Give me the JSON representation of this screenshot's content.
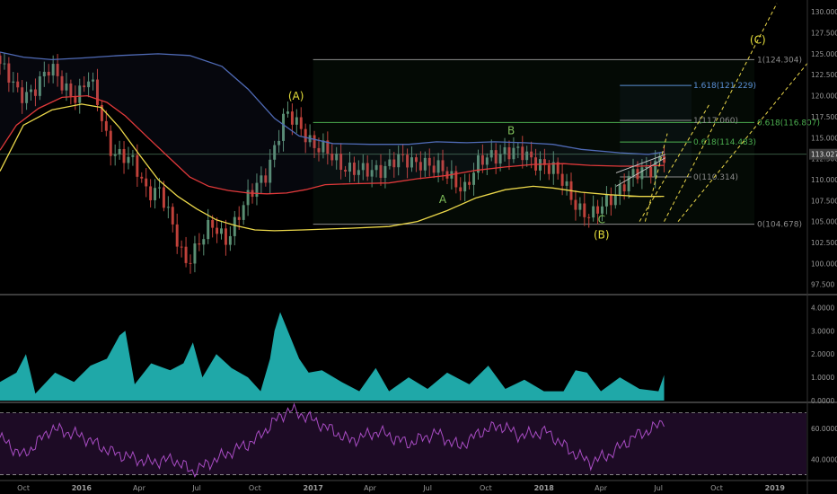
{
  "colors": {
    "background": "#000000",
    "up_candle": "#5a8f73",
    "down_candle": "#c0413a",
    "ma_fast": "#e0393a",
    "ma_slow": "#ecd84a",
    "band": "#4f6ab5",
    "volume": "#1fa8a8",
    "rsi_line": "#a84cc3",
    "rsi_fill": "#1d0b25",
    "fib": "#4caf50",
    "fib_blue": "#5a8fd6",
    "fib_grey": "#8c8c8c",
    "label_yellow": "#e3dc3a",
    "label_green": "#7fbf5a",
    "axis_text": "#9a9a9a",
    "last_price_bg": "#3b3b3b"
  },
  "chart_data": [
    {
      "type": "candlestick",
      "panel": "price",
      "y_axis": {
        "ylim": [
          96.5,
          131.2
        ],
        "ticks": [
          "97.500",
          "100.000",
          "102.500",
          "105.000",
          "107.500",
          "110.000",
          "112.500",
          "115.000",
          "117.500",
          "120.000",
          "122.500",
          "125.000",
          "127.500",
          "130.000"
        ],
        "last_price": "113.027",
        "last_price_value": 113.027
      },
      "x_axis": {
        "range": [
          "2015-08-25",
          "2019-02-20"
        ],
        "ticks": [
          {
            "label": "Oct",
            "date": "2015-10-01"
          },
          {
            "label": "2016",
            "date": "2016-01-01"
          },
          {
            "label": "Apr",
            "date": "2016-04-01"
          },
          {
            "label": "Jul",
            "date": "2016-07-01"
          },
          {
            "label": "Oct",
            "date": "2016-10-01"
          },
          {
            "label": "2017",
            "date": "2017-01-01"
          },
          {
            "label": "Apr",
            "date": "2017-04-01"
          },
          {
            "label": "Jul",
            "date": "2017-07-01"
          },
          {
            "label": "Oct",
            "date": "2017-10-01"
          },
          {
            "label": "2018",
            "date": "2018-01-01"
          },
          {
            "label": "Apr",
            "date": "2018-04-01"
          },
          {
            "label": "Jul",
            "date": "2018-07-01"
          },
          {
            "label": "Oct",
            "date": "2018-10-01"
          },
          {
            "label": "2019",
            "date": "2019-01-01"
          }
        ]
      },
      "price_path": [
        [
          "2015-08-25",
          124.8
        ],
        [
          "2015-09-10",
          122.5
        ],
        [
          "2015-10-01",
          120.0
        ],
        [
          "2015-10-25",
          121.0
        ],
        [
          "2015-11-20",
          123.0
        ],
        [
          "2015-12-10",
          121.5
        ],
        [
          "2016-01-01",
          119.8
        ],
        [
          "2016-01-20",
          121.8
        ],
        [
          "2016-02-05",
          118.8
        ],
        [
          "2016-02-20",
          114.2
        ],
        [
          "2016-03-10",
          112.5
        ],
        [
          "2016-04-01",
          111.8
        ],
        [
          "2016-04-20",
          109.0
        ],
        [
          "2016-05-10",
          108.5
        ],
        [
          "2016-06-01",
          104.0
        ],
        [
          "2016-06-20",
          100.5
        ],
        [
          "2016-07-10",
          102.0
        ],
        [
          "2016-08-01",
          104.5
        ],
        [
          "2016-08-25",
          103.2
        ],
        [
          "2016-09-20",
          106.5
        ],
        [
          "2016-10-10",
          109.5
        ],
        [
          "2016-10-25",
          111.0
        ],
        [
          "2016-11-10",
          114.0
        ],
        [
          "2016-11-25",
          117.5
        ],
        [
          "2016-12-10",
          117.2
        ],
        [
          "2016-12-25",
          116.0
        ],
        [
          "2017-01-10",
          113.8
        ],
        [
          "2017-02-01",
          113.0
        ],
        [
          "2017-02-20",
          112.2
        ],
        [
          "2017-03-10",
          111.2
        ],
        [
          "2017-03-30",
          110.6
        ],
        [
          "2017-04-20",
          111.4
        ],
        [
          "2017-05-15",
          112.2
        ],
        [
          "2017-06-10",
          112.0
        ],
        [
          "2017-06-30",
          112.5
        ],
        [
          "2017-07-20",
          111.2
        ],
        [
          "2017-08-15",
          110.2
        ],
        [
          "2017-09-05",
          109.2
        ],
        [
          "2017-09-25",
          111.5
        ],
        [
          "2017-10-15",
          112.8
        ],
        [
          "2017-11-05",
          113.6
        ],
        [
          "2017-11-25",
          113.0
        ],
        [
          "2017-12-15",
          112.6
        ],
        [
          "2018-01-05",
          112.2
        ],
        [
          "2018-01-25",
          110.8
        ],
        [
          "2018-02-15",
          108.6
        ],
        [
          "2018-03-05",
          106.8
        ],
        [
          "2018-03-25",
          105.4
        ],
        [
          "2018-04-10",
          106.6
        ],
        [
          "2018-04-30",
          108.6
        ],
        [
          "2018-05-20",
          110.0
        ],
        [
          "2018-06-10",
          110.6
        ],
        [
          "2018-06-25",
          111.4
        ],
        [
          "2018-07-05",
          112.3
        ],
        [
          "2018-07-10",
          113.0
        ]
      ],
      "candle_interval_days": 7,
      "indicators": {
        "ma_fast_path": [
          [
            "2015-08-25",
            113.5
          ],
          [
            "2015-09-20",
            116.5
          ],
          [
            "2015-10-25",
            118.5
          ],
          [
            "2015-12-01",
            119.8
          ],
          [
            "2016-01-10",
            120.0
          ],
          [
            "2016-02-10",
            119.2
          ],
          [
            "2016-03-10",
            117.6
          ],
          [
            "2016-04-15",
            115.0
          ],
          [
            "2016-05-20",
            112.5
          ],
          [
            "2016-06-20",
            110.3
          ],
          [
            "2016-07-20",
            109.2
          ],
          [
            "2016-08-20",
            108.7
          ],
          [
            "2016-09-20",
            108.4
          ],
          [
            "2016-10-20",
            108.3
          ],
          [
            "2016-11-20",
            108.4
          ],
          [
            "2016-12-20",
            108.8
          ],
          [
            "2017-01-20",
            109.4
          ],
          [
            "2017-03-01",
            109.5
          ],
          [
            "2017-05-01",
            109.6
          ],
          [
            "2017-06-15",
            110.1
          ],
          [
            "2017-08-01",
            110.5
          ],
          [
            "2017-09-15",
            111.1
          ],
          [
            "2017-11-01",
            111.5
          ],
          [
            "2017-12-15",
            111.8
          ],
          [
            "2018-02-01",
            111.9
          ],
          [
            "2018-03-15",
            111.7
          ],
          [
            "2018-05-01",
            111.6
          ],
          [
            "2018-06-01",
            111.6
          ],
          [
            "2018-07-10",
            111.7
          ]
        ],
        "ma_slow_path": [
          [
            "2015-08-25",
            111.0
          ],
          [
            "2015-10-01",
            116.5
          ],
          [
            "2015-11-15",
            118.3
          ],
          [
            "2016-01-01",
            119.0
          ],
          [
            "2016-02-01",
            118.6
          ],
          [
            "2016-03-01",
            116.2
          ],
          [
            "2016-04-01",
            113.0
          ],
          [
            "2016-05-01",
            110.0
          ],
          [
            "2016-06-01",
            108.0
          ],
          [
            "2016-07-01",
            106.5
          ],
          [
            "2016-08-01",
            105.2
          ],
          [
            "2016-09-01",
            104.5
          ],
          [
            "2016-10-01",
            104.0
          ],
          [
            "2016-11-01",
            103.9
          ],
          [
            "2016-12-15",
            104.0
          ],
          [
            "2017-03-01",
            104.2
          ],
          [
            "2017-05-01",
            104.4
          ],
          [
            "2017-06-15",
            105.0
          ],
          [
            "2017-08-01",
            106.3
          ],
          [
            "2017-09-15",
            107.8
          ],
          [
            "2017-11-01",
            108.8
          ],
          [
            "2017-12-15",
            109.2
          ],
          [
            "2018-01-15",
            109.0
          ],
          [
            "2018-03-01",
            108.5
          ],
          [
            "2018-04-15",
            108.2
          ],
          [
            "2018-06-01",
            108.0
          ],
          [
            "2018-07-10",
            108.0
          ]
        ],
        "band_upper_path": [
          [
            "2015-08-25",
            125.2
          ],
          [
            "2015-10-01",
            124.6
          ],
          [
            "2015-11-15",
            124.3
          ],
          [
            "2016-01-01",
            124.5
          ],
          [
            "2016-03-01",
            124.8
          ],
          [
            "2016-05-01",
            125.0
          ],
          [
            "2016-06-20",
            124.8
          ],
          [
            "2016-08-10",
            123.5
          ],
          [
            "2016-09-20",
            120.8
          ],
          [
            "2016-11-01",
            117.3
          ],
          [
            "2016-12-10",
            115.2
          ],
          [
            "2017-02-01",
            114.3
          ],
          [
            "2017-04-01",
            114.2
          ],
          [
            "2017-06-01",
            114.2
          ],
          [
            "2017-07-15",
            114.5
          ],
          [
            "2017-09-01",
            114.4
          ],
          [
            "2017-10-15",
            114.5
          ],
          [
            "2017-12-01",
            114.4
          ],
          [
            "2018-01-15",
            114.2
          ],
          [
            "2018-03-01",
            113.6
          ],
          [
            "2018-05-01",
            113.2
          ],
          [
            "2018-06-15",
            113.0
          ],
          [
            "2018-07-10",
            113.3
          ]
        ]
      },
      "fibonacci": {
        "retracement": [
          {
            "ratio": "1",
            "value": 124.304,
            "label": "1(124.304)"
          },
          {
            "ratio": "0.618",
            "value": 116.807,
            "label": "0.618(116.807)"
          },
          {
            "ratio": "0",
            "value": 104.678,
            "label": "0(104.678)"
          }
        ],
        "extension": [
          {
            "ratio": "1.618",
            "value": 121.229,
            "label": "1.618(121.229)"
          },
          {
            "ratio": "1",
            "value": 117.06,
            "label": "1(117.060)"
          },
          {
            "ratio": "0.618",
            "value": 114.483,
            "label": "0.618(114.483)"
          },
          {
            "ratio": "0",
            "value": 110.314,
            "label": "0(110.314)"
          }
        ]
      },
      "wave_labels": [
        {
          "text": "(A)",
          "date": "2016-12-05",
          "value": 119.5,
          "color": "yellow"
        },
        {
          "text": "(B)",
          "date": "2018-04-02",
          "value": 103.0,
          "color": "yellow"
        },
        {
          "text": "(C)",
          "date": "2018-12-05",
          "value": 126.2,
          "color": "yellow"
        },
        {
          "text": "A",
          "date": "2017-07-25",
          "value": 107.2,
          "color": "green"
        },
        {
          "text": "B",
          "date": "2017-11-10",
          "value": 115.4,
          "color": "green"
        },
        {
          "text": "C",
          "date": "2018-04-02",
          "value": 104.8,
          "color": "green"
        }
      ]
    },
    {
      "type": "area",
      "panel": "volume",
      "ylim": [
        0,
        4.4
      ],
      "ticks": [
        "0.0000",
        "1.0000",
        "2.0000",
        "3.0000",
        "4.0000"
      ],
      "series_path": [
        [
          "2015-08-25",
          0.8
        ],
        [
          "2015-09-20",
          1.2
        ],
        [
          "2015-10-05",
          2.0
        ],
        [
          "2015-10-20",
          0.3
        ],
        [
          "2015-11-20",
          1.2
        ],
        [
          "2015-12-20",
          0.8
        ],
        [
          "2016-01-15",
          1.5
        ],
        [
          "2016-02-10",
          1.8
        ],
        [
          "2016-03-01",
          2.8
        ],
        [
          "2016-03-10",
          3.0
        ],
        [
          "2016-03-25",
          0.7
        ],
        [
          "2016-04-20",
          1.6
        ],
        [
          "2016-05-20",
          1.3
        ],
        [
          "2016-06-10",
          1.6
        ],
        [
          "2016-06-25",
          2.5
        ],
        [
          "2016-07-10",
          1.0
        ],
        [
          "2016-08-01",
          2.0
        ],
        [
          "2016-08-25",
          1.4
        ],
        [
          "2016-09-20",
          1.0
        ],
        [
          "2016-10-10",
          0.4
        ],
        [
          "2016-10-25",
          1.8
        ],
        [
          "2016-11-01",
          3.0
        ],
        [
          "2016-11-10",
          3.8
        ],
        [
          "2016-11-25",
          2.8
        ],
        [
          "2016-12-10",
          1.8
        ],
        [
          "2016-12-25",
          1.2
        ],
        [
          "2017-01-15",
          1.3
        ],
        [
          "2017-02-15",
          0.8
        ],
        [
          "2017-03-15",
          0.4
        ],
        [
          "2017-04-10",
          1.4
        ],
        [
          "2017-05-01",
          0.4
        ],
        [
          "2017-06-01",
          1.0
        ],
        [
          "2017-07-01",
          0.5
        ],
        [
          "2017-08-01",
          1.2
        ],
        [
          "2017-09-05",
          0.7
        ],
        [
          "2017-10-05",
          1.5
        ],
        [
          "2017-11-01",
          0.5
        ],
        [
          "2017-12-01",
          0.9
        ],
        [
          "2018-01-01",
          0.4
        ],
        [
          "2018-02-01",
          0.4
        ],
        [
          "2018-02-20",
          1.3
        ],
        [
          "2018-03-10",
          1.2
        ],
        [
          "2018-04-01",
          0.4
        ],
        [
          "2018-05-01",
          1.0
        ],
        [
          "2018-06-01",
          0.5
        ],
        [
          "2018-07-01",
          0.4
        ],
        [
          "2018-07-10",
          1.1
        ]
      ]
    },
    {
      "type": "line",
      "panel": "rsi",
      "ylim": [
        28,
        75
      ],
      "ticks": [
        "40.0000",
        "60.0000"
      ],
      "bands": [
        70,
        30
      ],
      "series_path": [
        [
          "2015-08-25",
          54
        ],
        [
          "2015-10-01",
          42
        ],
        [
          "2015-11-15",
          60
        ],
        [
          "2016-01-01",
          55
        ],
        [
          "2016-02-15",
          45
        ],
        [
          "2016-04-15",
          38
        ],
        [
          "2016-05-25",
          40
        ],
        [
          "2016-06-25",
          32
        ],
        [
          "2016-08-15",
          43
        ],
        [
          "2016-10-01",
          52
        ],
        [
          "2016-11-05",
          66
        ],
        [
          "2016-11-25",
          72
        ],
        [
          "2016-12-20",
          68
        ],
        [
          "2017-01-25",
          60
        ],
        [
          "2017-03-01",
          52
        ],
        [
          "2017-04-15",
          58
        ],
        [
          "2017-06-01",
          50
        ],
        [
          "2017-07-15",
          57
        ],
        [
          "2017-08-20",
          48
        ],
        [
          "2017-09-25",
          58
        ],
        [
          "2017-10-25",
          62
        ],
        [
          "2017-11-25",
          55
        ],
        [
          "2018-01-05",
          58
        ],
        [
          "2018-02-10",
          46
        ],
        [
          "2018-03-15",
          38
        ],
        [
          "2018-04-15",
          43
        ],
        [
          "2018-05-25",
          55
        ],
        [
          "2018-06-25",
          60
        ],
        [
          "2018-07-10",
          66
        ]
      ]
    }
  ]
}
